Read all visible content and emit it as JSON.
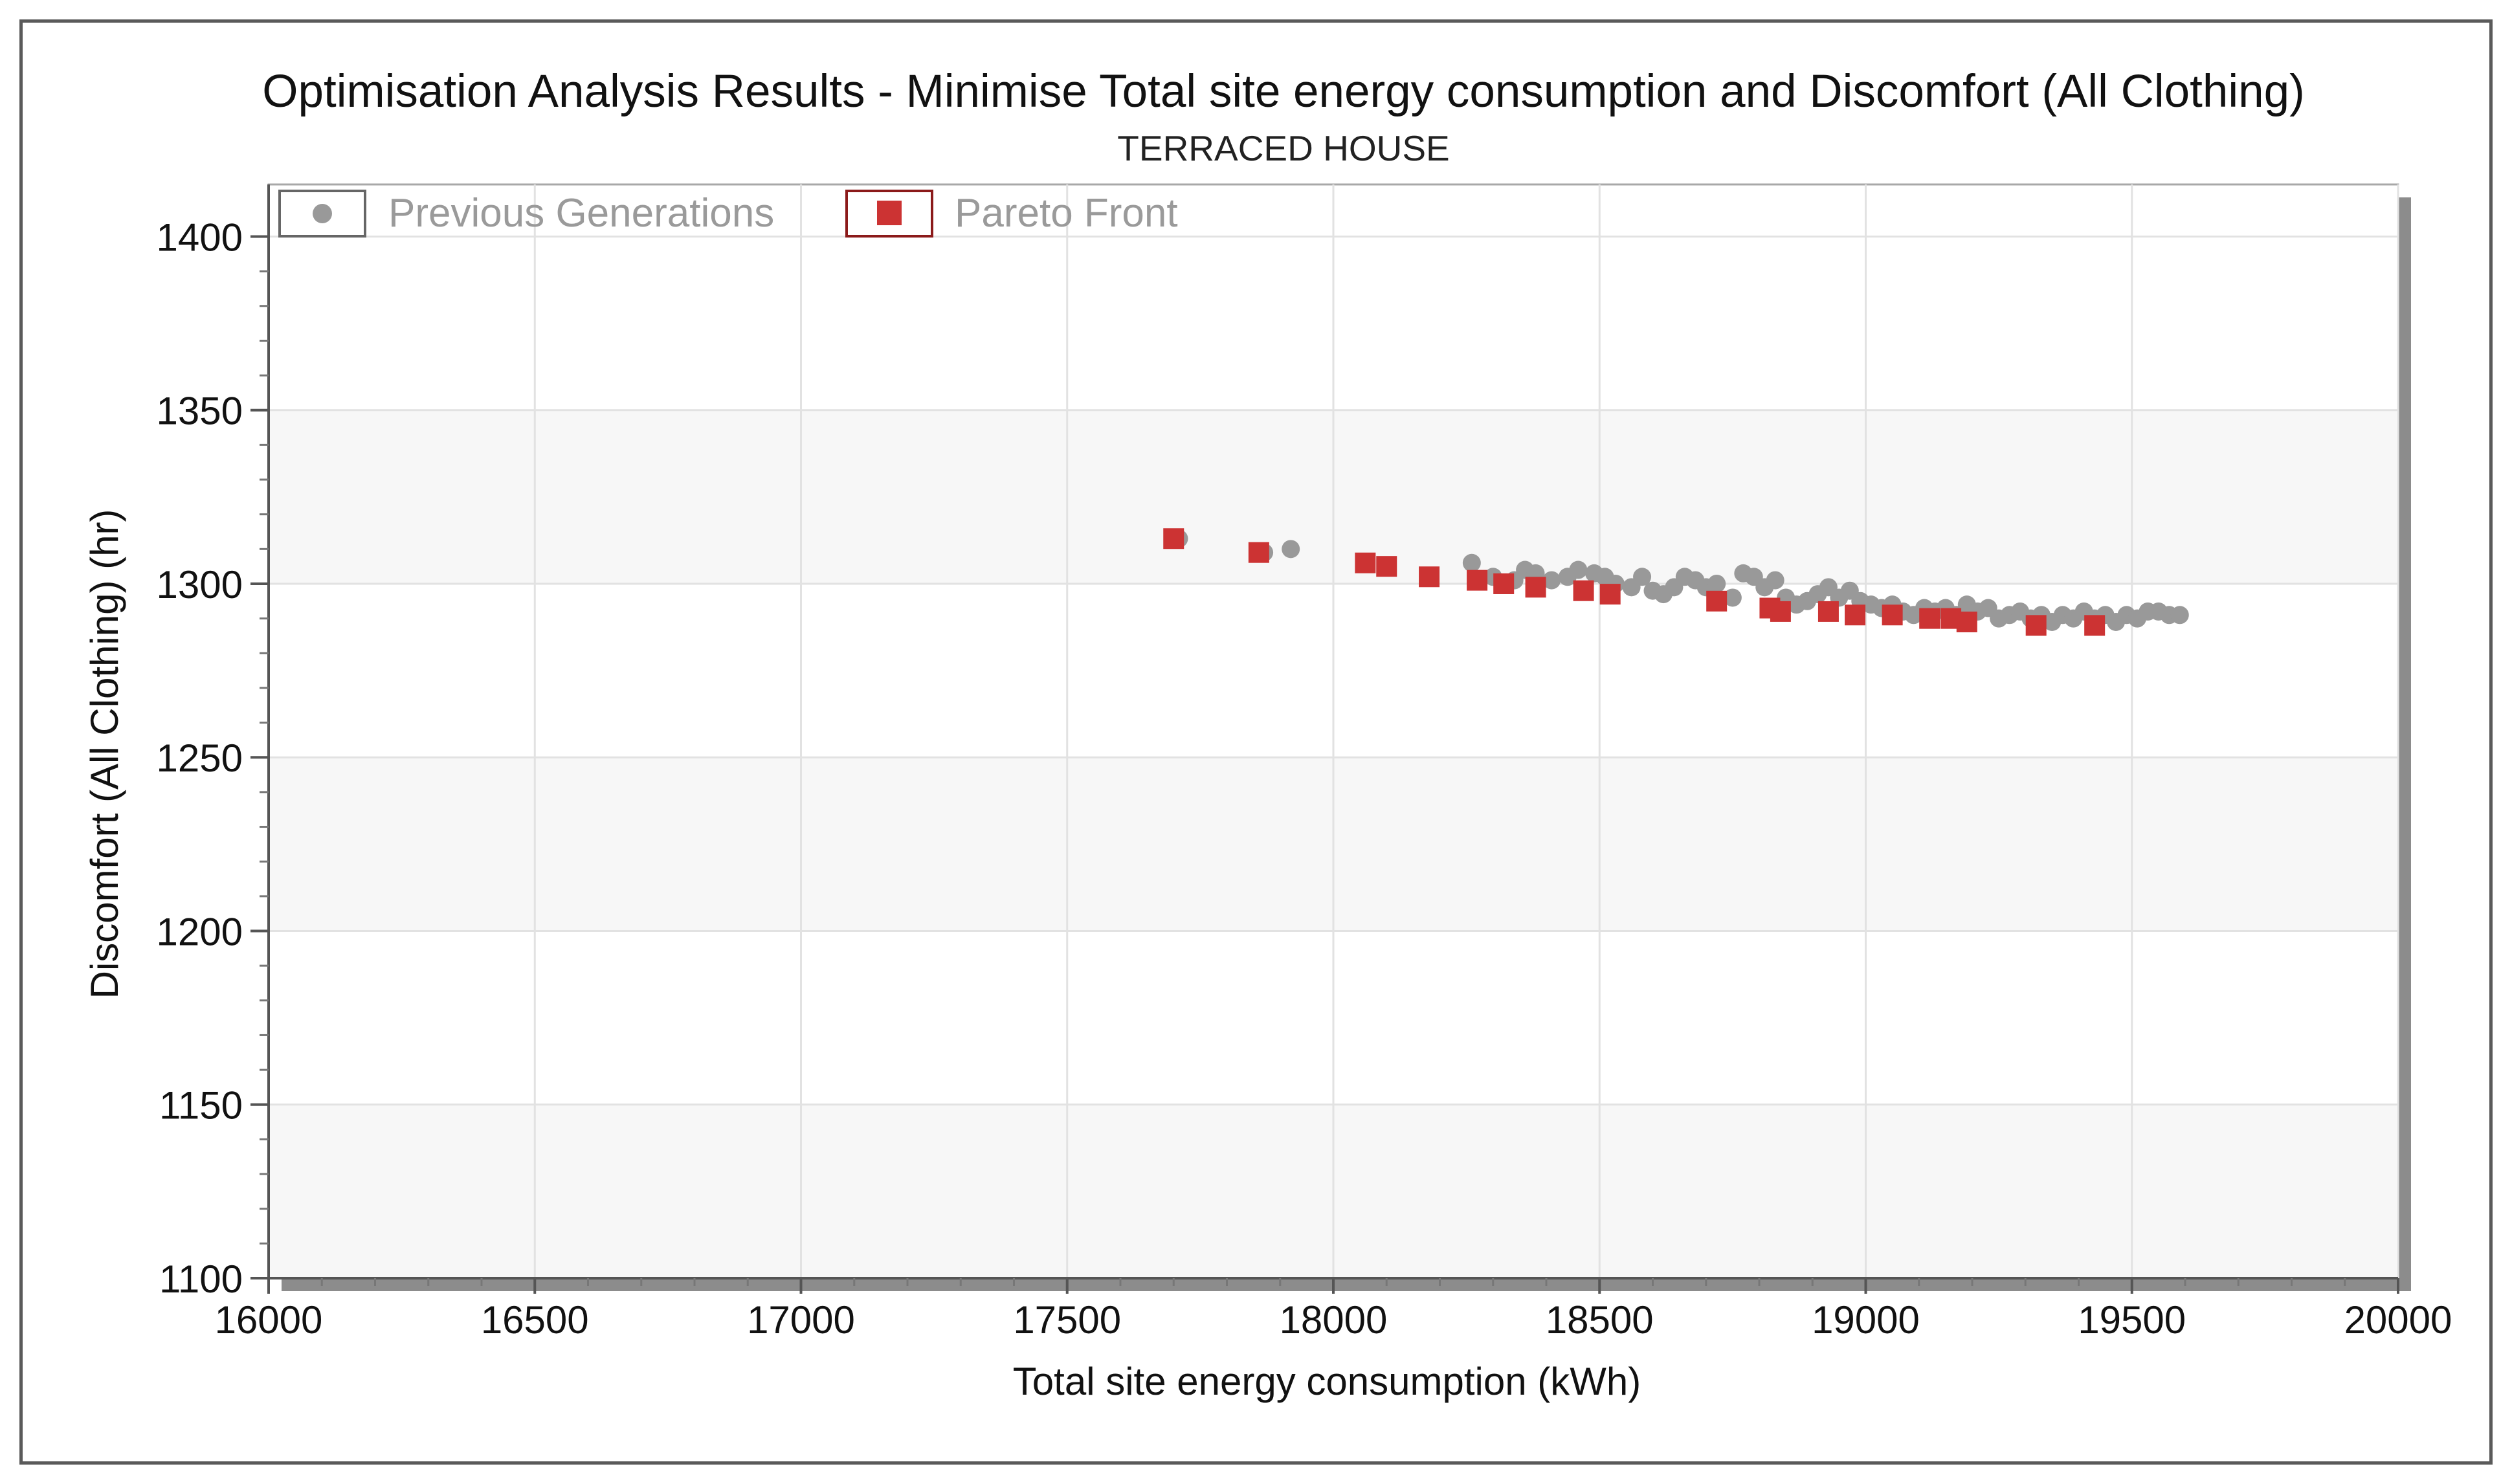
{
  "chart_data": {
    "type": "scatter",
    "title": "Optimisation Analysis Results - Minimise Total site energy consumption and Discomfort (All Clothing)",
    "subtitle": "TERRACED HOUSE",
    "xlabel": "Total site energy consumption (kWh)",
    "ylabel": "Discomfort (All Clothing) (hr)",
    "xlim": [
      16000,
      20000
    ],
    "ylim": [
      1100,
      1400
    ],
    "xticks": [
      "16000",
      "16500",
      "17000",
      "17500",
      "18000",
      "18500",
      "19000",
      "19500",
      "20000"
    ],
    "yticks": [
      "1100",
      "1150",
      "1200",
      "1250",
      "1300",
      "1350",
      "1400"
    ],
    "grid": true,
    "legend_position": "top-left",
    "series": [
      {
        "name": "Previous Generations",
        "marker": "circle",
        "color": "#999999",
        "points": [
          [
            17710,
            1313
          ],
          [
            17920,
            1310
          ],
          [
            17870,
            1309
          ],
          [
            18260,
            1306
          ],
          [
            18300,
            1302
          ],
          [
            18340,
            1301
          ],
          [
            18360,
            1304
          ],
          [
            18380,
            1303
          ],
          [
            18410,
            1301
          ],
          [
            18440,
            1302
          ],
          [
            18460,
            1304
          ],
          [
            18490,
            1303
          ],
          [
            18510,
            1302
          ],
          [
            18530,
            1300
          ],
          [
            18560,
            1299
          ],
          [
            18580,
            1302
          ],
          [
            18600,
            1298
          ],
          [
            18620,
            1297
          ],
          [
            18640,
            1299
          ],
          [
            18660,
            1302
          ],
          [
            18680,
            1301
          ],
          [
            18700,
            1299
          ],
          [
            18720,
            1300
          ],
          [
            18750,
            1296
          ],
          [
            18770,
            1303
          ],
          [
            18790,
            1302
          ],
          [
            18810,
            1299
          ],
          [
            18830,
            1301
          ],
          [
            18850,
            1296
          ],
          [
            18870,
            1294
          ],
          [
            18890,
            1295
          ],
          [
            18910,
            1297
          ],
          [
            18930,
            1299
          ],
          [
            18950,
            1296
          ],
          [
            18970,
            1298
          ],
          [
            18990,
            1295
          ],
          [
            19010,
            1294
          ],
          [
            19030,
            1293
          ],
          [
            19050,
            1294
          ],
          [
            19070,
            1292
          ],
          [
            19090,
            1291
          ],
          [
            19110,
            1293
          ],
          [
            19130,
            1292
          ],
          [
            19150,
            1293
          ],
          [
            19170,
            1291
          ],
          [
            19190,
            1294
          ],
          [
            19210,
            1292
          ],
          [
            19230,
            1293
          ],
          [
            19250,
            1290
          ],
          [
            19270,
            1291
          ],
          [
            19290,
            1292
          ],
          [
            19310,
            1290
          ],
          [
            19330,
            1291
          ],
          [
            19350,
            1289
          ],
          [
            19370,
            1291
          ],
          [
            19390,
            1290
          ],
          [
            19410,
            1292
          ],
          [
            19430,
            1290
          ],
          [
            19450,
            1291
          ],
          [
            19470,
            1289
          ],
          [
            19490,
            1291
          ],
          [
            19510,
            1290
          ],
          [
            19530,
            1292
          ],
          [
            19550,
            1292
          ],
          [
            19570,
            1291
          ],
          [
            19590,
            1291
          ]
        ]
      },
      {
        "name": "Pareto Front",
        "marker": "square",
        "color": "#cc3333",
        "points": [
          [
            17700,
            1313
          ],
          [
            17860,
            1309
          ],
          [
            18060,
            1306
          ],
          [
            18100,
            1305
          ],
          [
            18180,
            1302
          ],
          [
            18270,
            1301
          ],
          [
            18320,
            1300
          ],
          [
            18380,
            1299
          ],
          [
            18470,
            1298
          ],
          [
            18520,
            1297
          ],
          [
            18720,
            1295
          ],
          [
            18820,
            1293
          ],
          [
            18840,
            1292
          ],
          [
            18930,
            1292
          ],
          [
            18980,
            1291
          ],
          [
            19050,
            1291
          ],
          [
            19120,
            1290
          ],
          [
            19160,
            1290
          ],
          [
            19190,
            1289
          ],
          [
            19320,
            1288
          ],
          [
            19430,
            1288
          ]
        ]
      }
    ]
  }
}
